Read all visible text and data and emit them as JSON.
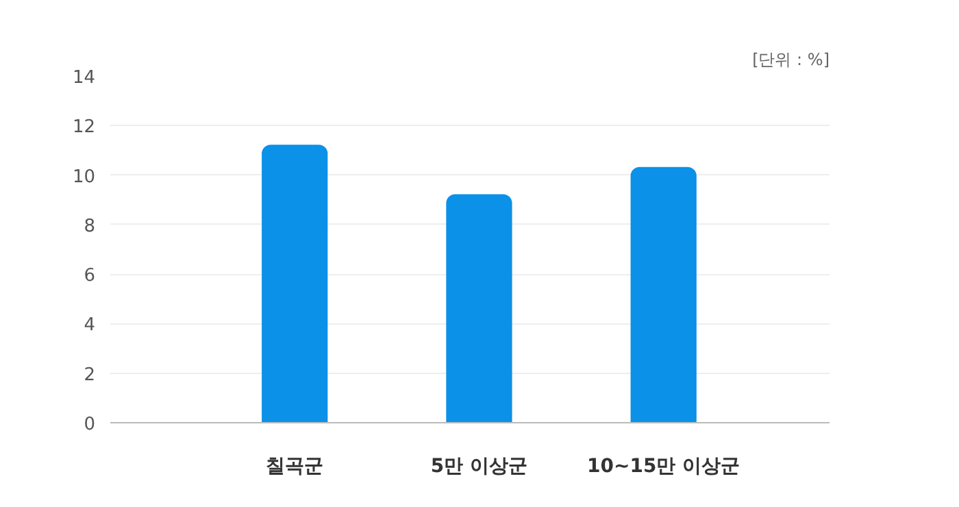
{
  "chart_data": {
    "type": "bar",
    "categories": [
      "칠곡군",
      "5만 이상군",
      "10~15만 이상군"
    ],
    "values": [
      11.2,
      9.2,
      10.3
    ],
    "colors": [
      "#0b91e8",
      "#0b91e8",
      "#0b91e8"
    ],
    "ylim": [
      0,
      14
    ],
    "yticks": [
      0,
      2,
      4,
      6,
      8,
      10,
      12,
      14
    ],
    "grid": "y",
    "annotations": [
      "[단위 : %]"
    ]
  }
}
